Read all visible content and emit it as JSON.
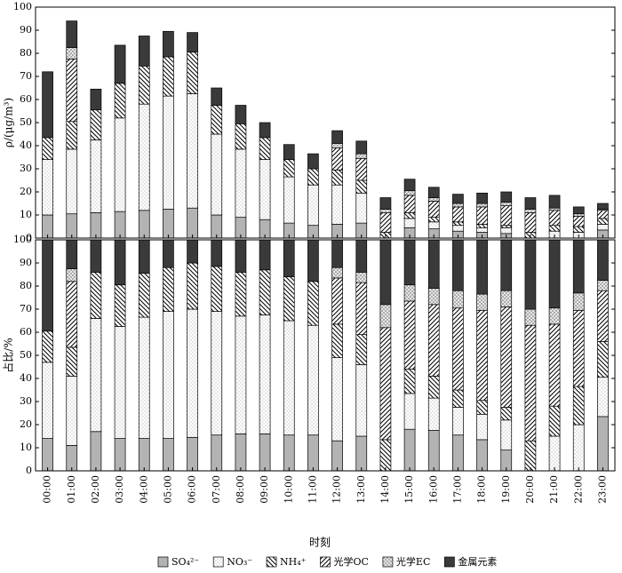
{
  "chart_data": {
    "type": "bar",
    "stacked": true,
    "xlabel": "时刻",
    "categories": [
      "00:00",
      "01:00",
      "02:00",
      "03:00",
      "04:00",
      "05:00",
      "06:00",
      "07:00",
      "08:00",
      "09:00",
      "10:00",
      "11:00",
      "12:00",
      "13:00",
      "14:00",
      "15:00",
      "16:00",
      "17:00",
      "18:00",
      "19:00",
      "20:00",
      "21:00",
      "22:00",
      "23:00"
    ],
    "series": [
      {
        "name": "SO₄²⁻",
        "color": "#b3b3b3",
        "pattern": "solid"
      },
      {
        "name": "NO₃⁻",
        "color": "#ffffff",
        "pattern": "dots"
      },
      {
        "name": "NH₄⁺",
        "color": "#ffffff",
        "pattern": "backslash"
      },
      {
        "name": "光学OC",
        "color": "#ffffff",
        "pattern": "slash"
      },
      {
        "name": "光学EC",
        "color": "#ffffff",
        "pattern": "cross"
      },
      {
        "name": "金属元素",
        "color": "#3a3a3a",
        "pattern": "solid"
      }
    ],
    "panels": [
      {
        "ylabel": "ρ/(μg/m³)",
        "ylim": [
          0,
          100
        ],
        "yticks": [
          0,
          10,
          20,
          30,
          40,
          50,
          60,
          70,
          80,
          90,
          100
        ],
        "values": [
          [
            10,
            10.5,
            11,
            11.5,
            12,
            12.5,
            13,
            10,
            9,
            8,
            6.5,
            5.5,
            6,
            6.5,
            0,
            4.5,
            4,
            3,
            2.5,
            2,
            0,
            0,
            0,
            3.5
          ],
          [
            24,
            28,
            31.5,
            40.5,
            46,
            49,
            49.5,
            35,
            29.5,
            26,
            20,
            17.5,
            17,
            13,
            0,
            4,
            3,
            2.5,
            2,
            2.5,
            0,
            3,
            2.5,
            2.5
          ],
          [
            9.5,
            12,
            13,
            15,
            16.5,
            17,
            18,
            12.5,
            11,
            9.5,
            7.5,
            7,
            6.5,
            5.5,
            2.5,
            2.5,
            2,
            1.5,
            1.5,
            1,
            2.5,
            2.5,
            2.5,
            2.5
          ],
          [
            0,
            27,
            0,
            0,
            0,
            0,
            0,
            0,
            0,
            0,
            0,
            0,
            9.5,
            9.5,
            8.5,
            7.5,
            7,
            6.5,
            7.5,
            8.5,
            8.5,
            6.5,
            4.5,
            3.5
          ],
          [
            0,
            5,
            0,
            0,
            0,
            0,
            0,
            0,
            0,
            0,
            0,
            0,
            2,
            2,
            1.5,
            2,
            1.5,
            1.5,
            1.5,
            1.5,
            1.5,
            1,
            1,
            0.5
          ],
          [
            28.5,
            11.5,
            9,
            16.5,
            13,
            11,
            8.5,
            7.5,
            8,
            6.5,
            6.5,
            6.5,
            5.5,
            5.5,
            5,
            5,
            4.5,
            4,
            4.5,
            4.5,
            5,
            5.5,
            3,
            2.5
          ]
        ]
      },
      {
        "ylabel": "占比/%",
        "ylim": [
          0,
          100
        ],
        "yticks": [
          0,
          10,
          20,
          30,
          40,
          50,
          60,
          70,
          80,
          90,
          100
        ],
        "values": [
          [
            14,
            11,
            17,
            14,
            14,
            14,
            14.5,
            15.5,
            16,
            16,
            15.5,
            15.5,
            13,
            15,
            0,
            18,
            17.5,
            15.5,
            13.5,
            9,
            0,
            0,
            0,
            23.5
          ],
          [
            33,
            30,
            49,
            48.5,
            52.5,
            55,
            55.5,
            53.5,
            51,
            51.5,
            49.5,
            47.5,
            36,
            31,
            0,
            15.5,
            14,
            12,
            11,
            13,
            0,
            15,
            20,
            17
          ],
          [
            13.5,
            12.5,
            20,
            18,
            19,
            19,
            20,
            19.5,
            19,
            19.5,
            19,
            19,
            14.5,
            13,
            13.5,
            10.5,
            9.5,
            7.5,
            6,
            5.5,
            13,
            13,
            16.5,
            15.5
          ],
          [
            0,
            28.5,
            0,
            0,
            0,
            0,
            0,
            0,
            0,
            0,
            0,
            0,
            20,
            22.5,
            48.5,
            29.5,
            31,
            35.5,
            39,
            43.5,
            50,
            35.5,
            33,
            22
          ],
          [
            0,
            5.5,
            0,
            0,
            0,
            0,
            0,
            0,
            0,
            0,
            0,
            0,
            4.5,
            4.5,
            10,
            7,
            7,
            7.5,
            7,
            7,
            7,
            7,
            7.5,
            4.5
          ],
          [
            39.5,
            12.5,
            14,
            19.5,
            14.5,
            12,
            10,
            11.5,
            14,
            13,
            16,
            18,
            12,
            14,
            28,
            19.5,
            21,
            22,
            23.5,
            22,
            30,
            29.5,
            23,
            17.5
          ]
        ]
      }
    ]
  }
}
